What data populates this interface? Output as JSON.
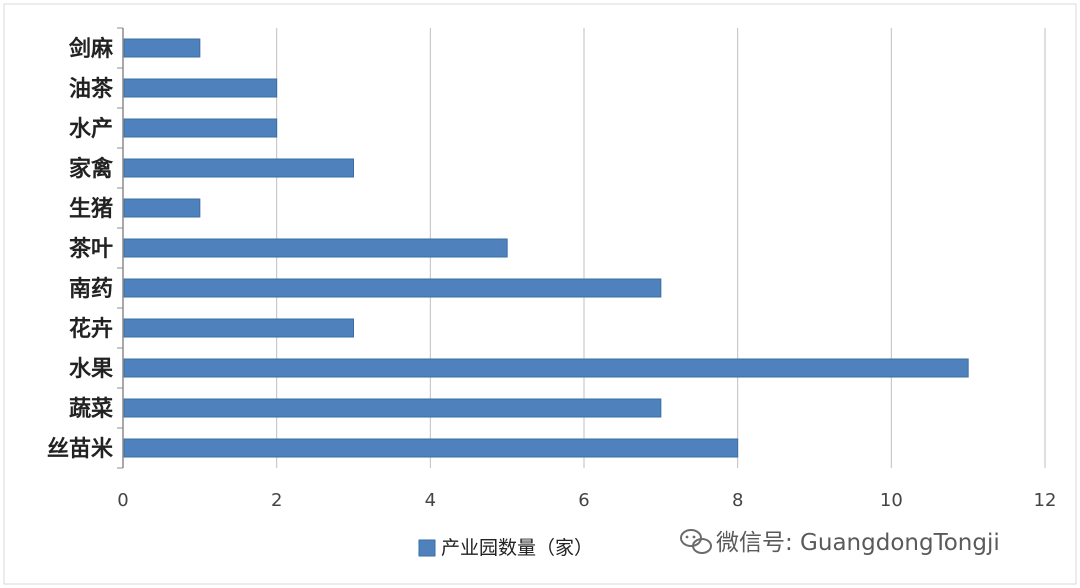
{
  "chart_data": {
    "type": "bar",
    "orientation": "horizontal",
    "categories": [
      "剑麻",
      "油茶",
      "水产",
      "家禽",
      "生猪",
      "茶叶",
      "南药",
      "花卉",
      "水果",
      "蔬菜",
      "丝苗米"
    ],
    "series": [
      {
        "name": "产业园数量（家）",
        "values": [
          1,
          2,
          2,
          3,
          1,
          5,
          7,
          3,
          11,
          7,
          8
        ]
      }
    ],
    "xlim": [
      0,
      12
    ],
    "xticks": [
      "0",
      "2",
      "4",
      "6",
      "8",
      "10",
      "12"
    ],
    "grid": true,
    "legend": "bottom",
    "colors": {
      "bar": "#4f81bd",
      "bar_edge": "#3a6ea5",
      "grid": "#bfbfbf",
      "axis": "#8c8c8c"
    }
  },
  "watermark": {
    "text": "微信号: GuangdongTongji",
    "icon": "wechat-icon"
  }
}
